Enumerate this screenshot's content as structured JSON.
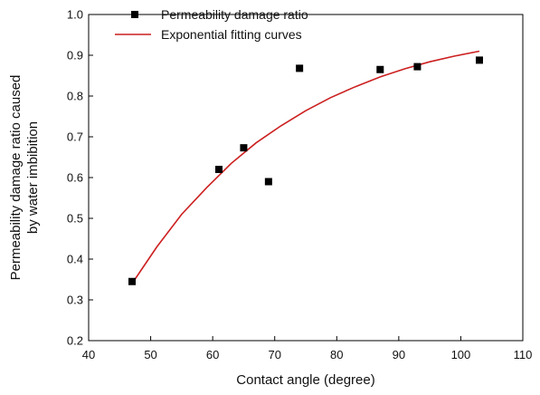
{
  "chart_data": {
    "type": "scatter",
    "xlabel": "Contact angle (degree)",
    "ylabel_lines": [
      "Permeability damage ratio caused",
      "by water imbibition"
    ],
    "xlim": [
      40,
      110
    ],
    "ylim": [
      0.2,
      1.0
    ],
    "xticks": [
      40,
      50,
      60,
      70,
      80,
      90,
      100,
      110
    ],
    "yticks": [
      0.2,
      0.3,
      0.4,
      0.5,
      0.6,
      0.7,
      0.8,
      0.9,
      1.0
    ],
    "xtick_labels": [
      "40",
      "50",
      "60",
      "70",
      "80",
      "90",
      "100",
      "110"
    ],
    "ytick_labels": [
      "0.2",
      "0.3",
      "0.4",
      "0.5",
      "0.6",
      "0.7",
      "0.8",
      "0.9",
      "1.0"
    ],
    "grid": false,
    "legend_position": "top-left",
    "series": [
      {
        "name": "Permeability damage ratio",
        "kind": "scatter",
        "marker": "square",
        "color": "#000000",
        "x": [
          47,
          61,
          65,
          69,
          74,
          87,
          93,
          103
        ],
        "y": [
          0.345,
          0.62,
          0.673,
          0.59,
          0.868,
          0.865,
          0.872,
          0.888
        ]
      },
      {
        "name": "Exponential fitting curves",
        "kind": "line",
        "color": "#cc1f1f",
        "x": [
          47,
          51,
          55,
          59,
          63,
          67,
          71,
          75,
          79,
          83,
          87,
          91,
          95,
          99,
          103
        ],
        "y": [
          0.34,
          0.43,
          0.51,
          0.575,
          0.635,
          0.685,
          0.727,
          0.764,
          0.796,
          0.823,
          0.847,
          0.867,
          0.884,
          0.898,
          0.91
        ]
      }
    ]
  }
}
